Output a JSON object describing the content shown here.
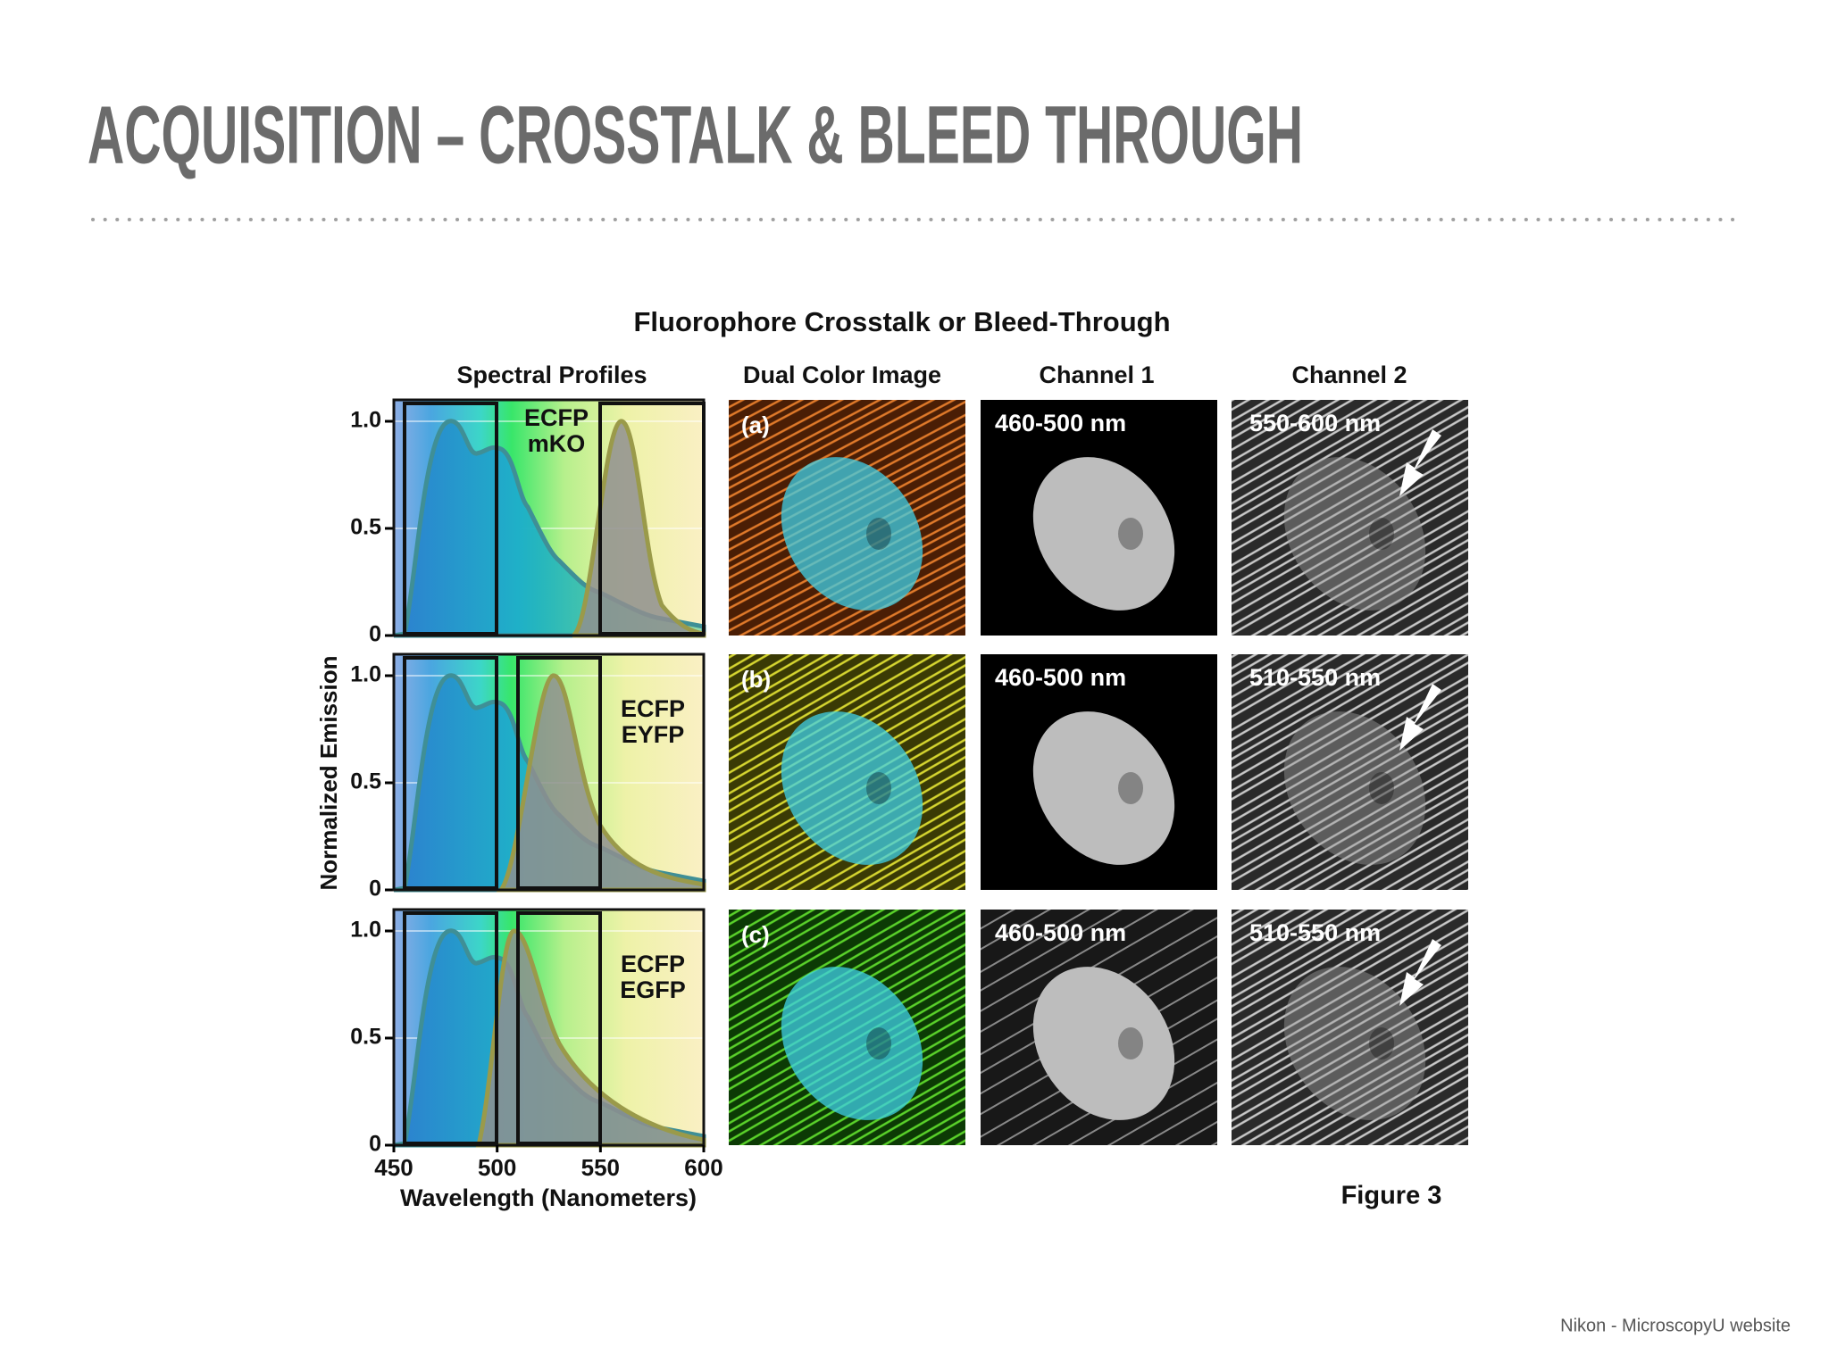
{
  "title": "ACQUISITION – CROSSTALK & BLEED THROUGH",
  "figure": {
    "title": "Fluorophore Crosstalk or Bleed-Through",
    "column_headers": [
      "Spectral Profiles",
      "Dual Color Image",
      "Channel 1",
      "Channel 2"
    ],
    "y_label": "Normalized Emission",
    "x_label": "Wavelength (Nanometers)",
    "xlim": [
      450,
      600
    ],
    "xticks": [
      450,
      500,
      550,
      600
    ],
    "ylim": [
      0,
      1.1
    ],
    "yticks": [
      0,
      0.5,
      {
        "value": 1,
        "label": "1.0"
      }
    ],
    "rows": [
      {
        "dyes": [
          "ECFP",
          "mKO"
        ],
        "panel": "(a)",
        "channel1": "460-500 nm",
        "channel2": "550-600 nm"
      },
      {
        "dyes": [
          "ECFP",
          "EYFP"
        ],
        "panel": "(b)",
        "channel1": "460-500 nm",
        "channel2": "510-550 nm"
      },
      {
        "dyes": [
          "ECFP",
          "EGFP"
        ],
        "panel": "(c)",
        "channel1": "460-500 nm",
        "channel2": "510-550 nm"
      }
    ],
    "caption": "Figure 3"
  },
  "source": "Nikon - MicroscopyU website"
}
